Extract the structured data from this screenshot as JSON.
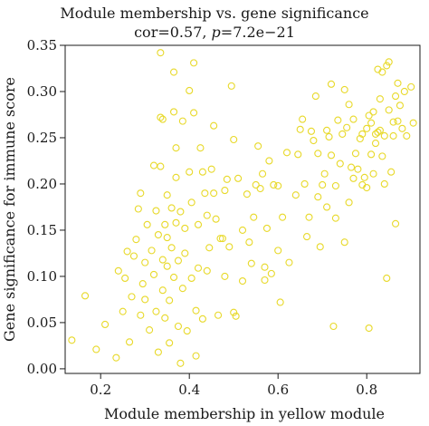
{
  "chart_data": {
    "type": "scatter",
    "title": "Module membership vs. gene significance",
    "subtitle_parts": {
      "cor": "cor=0.57, ",
      "p_label": "p",
      "p_value": "=7.2e−21"
    },
    "xlabel": "Module membership in yellow module",
    "ylabel": "Gene significance for immune score",
    "xlim": [
      0.12,
      0.92
    ],
    "ylim": [
      -0.005,
      0.35
    ],
    "xticks": [
      0.2,
      0.4,
      0.6,
      0.8
    ],
    "xtick_labels": [
      "0.2",
      "0.4",
      "0.6",
      "0.8"
    ],
    "yticks": [
      0.0,
      0.05,
      0.1,
      0.15,
      0.2,
      0.25,
      0.3,
      0.35
    ],
    "ytick_labels": [
      "0.00",
      "0.05",
      "0.10",
      "0.15",
      "0.20",
      "0.25",
      "0.30",
      "0.35"
    ],
    "grid": false,
    "marker": "open-circle",
    "point_color": "#e8d92a",
    "points": [
      [
        0.135,
        0.031
      ],
      [
        0.165,
        0.079
      ],
      [
        0.19,
        0.021
      ],
      [
        0.21,
        0.048
      ],
      [
        0.235,
        0.012
      ],
      [
        0.24,
        0.106
      ],
      [
        0.25,
        0.062
      ],
      [
        0.255,
        0.098
      ],
      [
        0.26,
        0.127
      ],
      [
        0.265,
        0.029
      ],
      [
        0.27,
        0.078
      ],
      [
        0.275,
        0.122
      ],
      [
        0.28,
        0.14
      ],
      [
        0.285,
        0.173
      ],
      [
        0.29,
        0.19
      ],
      [
        0.29,
        0.058
      ],
      [
        0.295,
        0.092
      ],
      [
        0.3,
        0.115
      ],
      [
        0.3,
        0.075
      ],
      [
        0.305,
        0.156
      ],
      [
        0.31,
        0.042
      ],
      [
        0.315,
        0.128
      ],
      [
        0.32,
        0.102
      ],
      [
        0.32,
        0.22
      ],
      [
        0.325,
        0.171
      ],
      [
        0.325,
        0.062
      ],
      [
        0.33,
        0.145
      ],
      [
        0.33,
        0.018
      ],
      [
        0.335,
        0.219
      ],
      [
        0.335,
        0.342
      ],
      [
        0.335,
        0.272
      ],
      [
        0.34,
        0.27
      ],
      [
        0.34,
        0.118
      ],
      [
        0.34,
        0.085
      ],
      [
        0.345,
        0.156
      ],
      [
        0.345,
        0.055
      ],
      [
        0.35,
        0.188
      ],
      [
        0.35,
        0.111
      ],
      [
        0.35,
        0.142
      ],
      [
        0.355,
        0.028
      ],
      [
        0.355,
        0.074
      ],
      [
        0.36,
        0.174
      ],
      [
        0.36,
        0.131
      ],
      [
        0.365,
        0.099
      ],
      [
        0.365,
        0.321
      ],
      [
        0.365,
        0.278
      ],
      [
        0.37,
        0.239
      ],
      [
        0.37,
        0.207
      ],
      [
        0.37,
        0.158
      ],
      [
        0.375,
        0.046
      ],
      [
        0.375,
        0.117
      ],
      [
        0.38,
        0.006
      ],
      [
        0.38,
        0.17
      ],
      [
        0.385,
        0.268
      ],
      [
        0.385,
        0.087
      ],
      [
        0.39,
        0.152
      ],
      [
        0.39,
        0.125
      ],
      [
        0.395,
        0.041
      ],
      [
        0.4,
        0.213
      ],
      [
        0.4,
        0.301
      ],
      [
        0.405,
        0.18
      ],
      [
        0.405,
        0.098
      ],
      [
        0.41,
        0.331
      ],
      [
        0.41,
        0.277
      ],
      [
        0.415,
        0.014
      ],
      [
        0.415,
        0.063
      ],
      [
        0.42,
        0.156
      ],
      [
        0.42,
        0.109
      ],
      [
        0.425,
        0.239
      ],
      [
        0.43,
        0.213
      ],
      [
        0.43,
        0.054
      ],
      [
        0.435,
        0.19
      ],
      [
        0.44,
        0.166
      ],
      [
        0.44,
        0.106
      ],
      [
        0.445,
        0.131
      ],
      [
        0.45,
        0.216
      ],
      [
        0.455,
        0.263
      ],
      [
        0.455,
        0.19
      ],
      [
        0.46,
        0.162
      ],
      [
        0.465,
        0.058
      ],
      [
        0.47,
        0.141
      ],
      [
        0.475,
        0.141
      ],
      [
        0.48,
        0.193
      ],
      [
        0.48,
        0.1
      ],
      [
        0.485,
        0.205
      ],
      [
        0.49,
        0.132
      ],
      [
        0.495,
        0.306
      ],
      [
        0.5,
        0.061
      ],
      [
        0.5,
        0.248
      ],
      [
        0.505,
        0.057
      ],
      [
        0.51,
        0.206
      ],
      [
        0.52,
        0.15
      ],
      [
        0.52,
        0.095
      ],
      [
        0.53,
        0.189
      ],
      [
        0.535,
        0.137
      ],
      [
        0.54,
        0.114
      ],
      [
        0.545,
        0.164
      ],
      [
        0.55,
        0.199
      ],
      [
        0.555,
        0.241
      ],
      [
        0.56,
        0.195
      ],
      [
        0.565,
        0.211
      ],
      [
        0.57,
        0.11
      ],
      [
        0.57,
        0.096
      ],
      [
        0.575,
        0.152
      ],
      [
        0.58,
        0.225
      ],
      [
        0.585,
        0.103
      ],
      [
        0.59,
        0.199
      ],
      [
        0.6,
        0.128
      ],
      [
        0.6,
        0.198
      ],
      [
        0.605,
        0.072
      ],
      [
        0.61,
        0.164
      ],
      [
        0.62,
        0.234
      ],
      [
        0.625,
        0.115
      ],
      [
        0.64,
        0.188
      ],
      [
        0.645,
        0.232
      ],
      [
        0.65,
        0.259
      ],
      [
        0.655,
        0.27
      ],
      [
        0.66,
        0.2
      ],
      [
        0.665,
        0.143
      ],
      [
        0.67,
        0.164
      ],
      [
        0.675,
        0.257
      ],
      [
        0.68,
        0.247
      ],
      [
        0.685,
        0.295
      ],
      [
        0.69,
        0.233
      ],
      [
        0.69,
        0.186
      ],
      [
        0.695,
        0.132
      ],
      [
        0.7,
        0.199
      ],
      [
        0.705,
        0.211
      ],
      [
        0.71,
        0.258
      ],
      [
        0.71,
        0.175
      ],
      [
        0.715,
        0.251
      ],
      [
        0.72,
        0.308
      ],
      [
        0.72,
        0.231
      ],
      [
        0.725,
        0.046
      ],
      [
        0.73,
        0.198
      ],
      [
        0.73,
        0.163
      ],
      [
        0.735,
        0.269
      ],
      [
        0.74,
        0.222
      ],
      [
        0.745,
        0.254
      ],
      [
        0.75,
        0.302
      ],
      [
        0.75,
        0.137
      ],
      [
        0.755,
        0.261
      ],
      [
        0.76,
        0.286
      ],
      [
        0.76,
        0.18
      ],
      [
        0.765,
        0.218
      ],
      [
        0.77,
        0.27
      ],
      [
        0.77,
        0.206
      ],
      [
        0.775,
        0.233
      ],
      [
        0.78,
        0.216
      ],
      [
        0.785,
        0.249
      ],
      [
        0.79,
        0.254
      ],
      [
        0.79,
        0.199
      ],
      [
        0.795,
        0.207
      ],
      [
        0.8,
        0.26
      ],
      [
        0.8,
        0.196
      ],
      [
        0.805,
        0.274
      ],
      [
        0.805,
        0.044
      ],
      [
        0.81,
        0.266
      ],
      [
        0.81,
        0.232
      ],
      [
        0.815,
        0.278
      ],
      [
        0.815,
        0.211
      ],
      [
        0.82,
        0.254
      ],
      [
        0.82,
        0.244
      ],
      [
        0.825,
        0.256
      ],
      [
        0.825,
        0.324
      ],
      [
        0.83,
        0.258
      ],
      [
        0.83,
        0.292
      ],
      [
        0.835,
        0.321
      ],
      [
        0.835,
        0.23
      ],
      [
        0.84,
        0.252
      ],
      [
        0.84,
        0.2
      ],
      [
        0.845,
        0.328
      ],
      [
        0.845,
        0.098
      ],
      [
        0.85,
        0.332
      ],
      [
        0.85,
        0.28
      ],
      [
        0.855,
        0.213
      ],
      [
        0.86,
        0.267
      ],
      [
        0.86,
        0.252
      ],
      [
        0.865,
        0.295
      ],
      [
        0.865,
        0.157
      ],
      [
        0.87,
        0.309
      ],
      [
        0.87,
        0.268
      ],
      [
        0.875,
        0.285
      ],
      [
        0.88,
        0.26
      ],
      [
        0.885,
        0.3
      ],
      [
        0.89,
        0.252
      ],
      [
        0.9,
        0.305
      ],
      [
        0.905,
        0.266
      ]
    ]
  }
}
